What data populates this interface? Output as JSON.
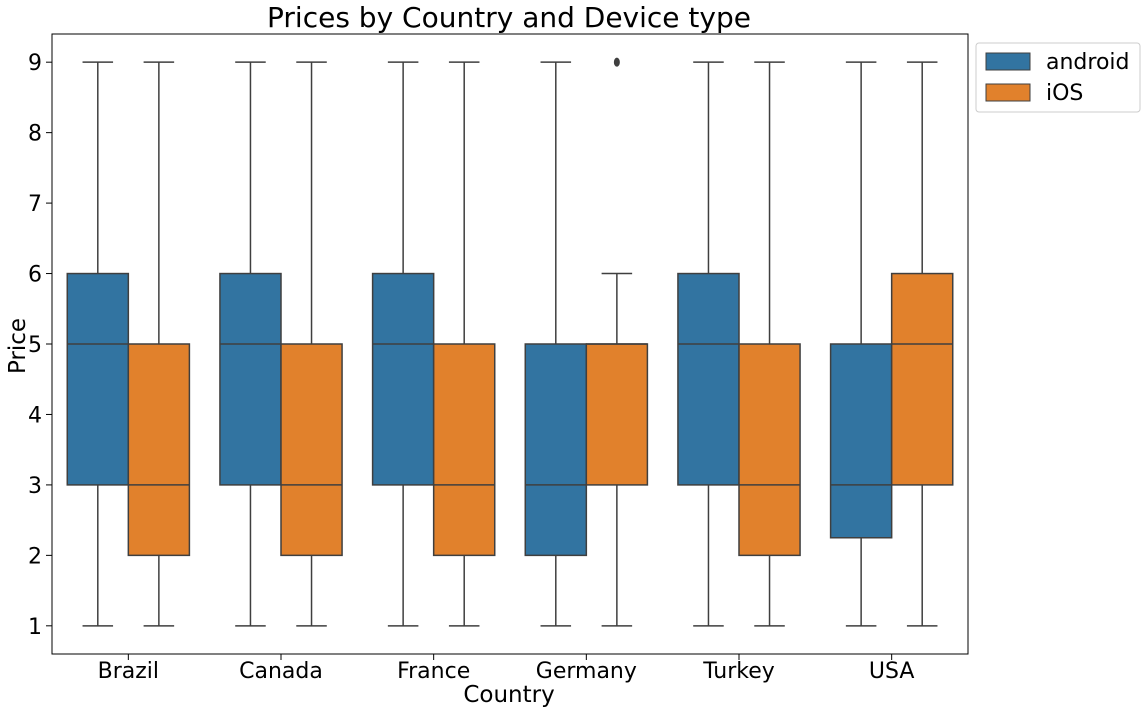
{
  "chart_data": {
    "type": "box",
    "title": "Prices by Country and Device type",
    "xlabel": "Country",
    "ylabel": "Price",
    "categories": [
      "Brazil",
      "Canada",
      "France",
      "Germany",
      "Turkey",
      "USA"
    ],
    "ylim": [
      0.6,
      9.4
    ],
    "yticks": [
      "1",
      "2",
      "3",
      "4",
      "5",
      "6",
      "7",
      "8",
      "9"
    ],
    "grid": false,
    "legend_position": "outside-top-right",
    "series": [
      {
        "name": "android",
        "color": "#3274a1",
        "boxes": [
          {
            "whisker_low": 1,
            "q1": 3,
            "median": 5,
            "q3": 6,
            "whisker_high": 9,
            "outliers": []
          },
          {
            "whisker_low": 1,
            "q1": 3,
            "median": 5,
            "q3": 6,
            "whisker_high": 9,
            "outliers": []
          },
          {
            "whisker_low": 1,
            "q1": 3,
            "median": 5,
            "q3": 6,
            "whisker_high": 9,
            "outliers": []
          },
          {
            "whisker_low": 1,
            "q1": 2,
            "median": 3,
            "q3": 5,
            "whisker_high": 9,
            "outliers": []
          },
          {
            "whisker_low": 1,
            "q1": 3,
            "median": 5,
            "q3": 6,
            "whisker_high": 9,
            "outliers": []
          },
          {
            "whisker_low": 1,
            "q1": 2.25,
            "median": 3,
            "q3": 5,
            "whisker_high": 9,
            "outliers": []
          }
        ]
      },
      {
        "name": "iOS",
        "color": "#e1812c",
        "boxes": [
          {
            "whisker_low": 1,
            "q1": 2,
            "median": 3,
            "q3": 5,
            "whisker_high": 9,
            "outliers": []
          },
          {
            "whisker_low": 1,
            "q1": 2,
            "median": 3,
            "q3": 5,
            "whisker_high": 9,
            "outliers": []
          },
          {
            "whisker_low": 1,
            "q1": 2,
            "median": 3,
            "q3": 5,
            "whisker_high": 9,
            "outliers": []
          },
          {
            "whisker_low": 1,
            "q1": 3,
            "median": 5,
            "q3": 5,
            "whisker_high": 6,
            "outliers": [
              9
            ]
          },
          {
            "whisker_low": 1,
            "q1": 2,
            "median": 3,
            "q3": 5,
            "whisker_high": 9,
            "outliers": []
          },
          {
            "whisker_low": 1,
            "q1": 3,
            "median": 5,
            "q3": 6,
            "whisker_high": 9,
            "outliers": []
          }
        ]
      }
    ]
  }
}
